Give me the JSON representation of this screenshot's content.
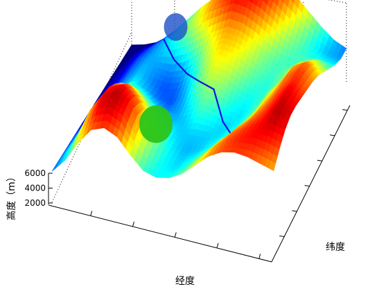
{
  "chart_data": {
    "type": "surface",
    "xlabel": "经度",
    "ylabel": "纬度",
    "zlabel": "高度（m）",
    "zlim": [
      1500,
      6000
    ],
    "zticks": [
      2000,
      4000,
      6000
    ],
    "grid": true,
    "colormap": "jet",
    "elevation_samples": {
      "rows": 14,
      "cols": 18,
      "values": [
        [
          1600,
          1700,
          1900,
          2100,
          2500,
          3000,
          3600,
          4200,
          4700,
          5200,
          5600,
          5800,
          5500,
          5000,
          4400,
          3800,
          3300,
          3000
        ],
        [
          1700,
          2000,
          2300,
          2700,
          3200,
          3800,
          4400,
          4900,
          5300,
          5600,
          5700,
          5500,
          5000,
          4500,
          4000,
          3500,
          3200,
          3100
        ],
        [
          1800,
          2200,
          2600,
          3000,
          3400,
          3900,
          4300,
          4800,
          5100,
          5400,
          5300,
          5000,
          4600,
          4100,
          3800,
          3600,
          3500,
          3400
        ],
        [
          1900,
          2300,
          2800,
          3100,
          3300,
          3500,
          3800,
          4200,
          4600,
          4900,
          4800,
          4500,
          4100,
          3800,
          3700,
          3900,
          4100,
          3800
        ],
        [
          2000,
          2400,
          2900,
          3200,
          3100,
          3000,
          3200,
          3700,
          4300,
          4700,
          4600,
          4300,
          3900,
          3700,
          3900,
          4400,
          4600,
          4200
        ],
        [
          2100,
          2500,
          3000,
          3300,
          3000,
          2800,
          2900,
          3400,
          4000,
          4500,
          4400,
          4000,
          3700,
          3600,
          4000,
          4800,
          5100,
          4600
        ],
        [
          2200,
          2600,
          3100,
          3500,
          3200,
          2900,
          2800,
          3200,
          3800,
          4200,
          4100,
          3700,
          3500,
          3700,
          4300,
          5000,
          5300,
          4900
        ],
        [
          2300,
          2800,
          3400,
          3900,
          3700,
          3300,
          3000,
          3100,
          3500,
          3900,
          3800,
          3500,
          3400,
          3800,
          4500,
          5100,
          5400,
          5100
        ],
        [
          2400,
          3000,
          3800,
          4500,
          4400,
          3900,
          3400,
          3200,
          3300,
          3600,
          3500,
          3300,
          3500,
          4000,
          4700,
          5200,
          5600,
          5300
        ],
        [
          2500,
          3200,
          4200,
          5000,
          5100,
          4600,
          3900,
          3500,
          3300,
          3300,
          3300,
          3400,
          3700,
          4300,
          4900,
          5300,
          5700,
          5500
        ],
        [
          2600,
          3400,
          4600,
          5400,
          5600,
          5200,
          4400,
          3800,
          3400,
          3200,
          3300,
          3600,
          4100,
          4700,
          5100,
          5400,
          5800,
          5600
        ],
        [
          2700,
          3500,
          4800,
          5600,
          5800,
          5500,
          4700,
          4000,
          3500,
          3300,
          3500,
          3900,
          4500,
          5000,
          5300,
          5500,
          5700,
          5500
        ],
        [
          2800,
          3600,
          4700,
          5500,
          5700,
          5400,
          4600,
          3900,
          3500,
          3400,
          3700,
          4200,
          4800,
          5200,
          5400,
          5500,
          5400,
          5200
        ],
        [
          2900,
          3500,
          4400,
          5100,
          5300,
          5000,
          4300,
          3700,
          3500,
          3600,
          3900,
          4400,
          4900,
          5200,
          5300,
          5200,
          5000,
          4800
        ]
      ]
    },
    "annotations": [
      {
        "type": "path",
        "name": "",
        "color": "#1010dd",
        "points": [
          [
            2.0,
            3.5
          ],
          [
            3.5,
            5.0
          ],
          [
            4.5,
            6.5
          ],
          [
            5.8,
            8.0
          ],
          [
            6.5,
            9.5
          ],
          [
            7.8,
            10.8
          ],
          [
            9.2,
            12.0
          ]
        ]
      },
      {
        "type": "marker",
        "shape": "circle",
        "color": "#2bc41a",
        "at": [
          10.2,
          6.7
        ]
      },
      {
        "type": "marker",
        "shape": "circle",
        "color": "#1e50c8",
        "at": [
          1.5,
          4.2
        ]
      }
    ]
  }
}
